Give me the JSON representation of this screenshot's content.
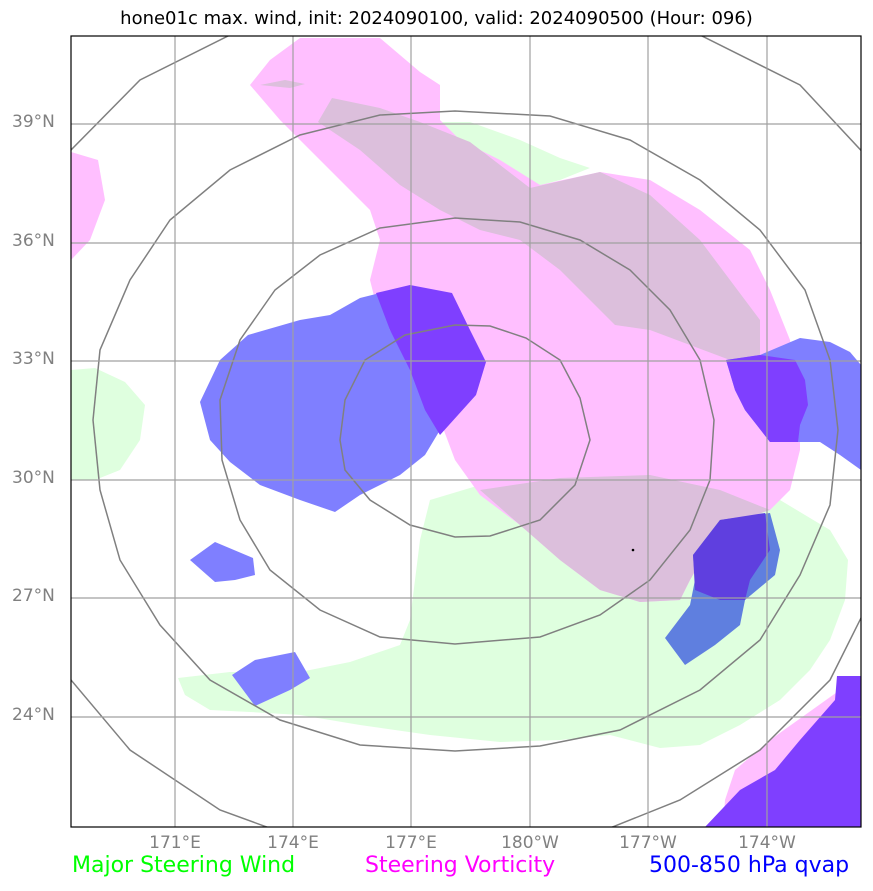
{
  "title": "hone01c max. wind, init: 2024090100, valid: 2024090500 (Hour: 096)",
  "lat_labels": [
    "39°N",
    "36°N",
    "33°N",
    "30°N",
    "27°N",
    "24°N"
  ],
  "lon_labels": [
    "171°E",
    "174°E",
    "177°E",
    "180°W",
    "177°W",
    "174°W"
  ],
  "legend": [
    {
      "label": "Major Steering Wind",
      "color": "#00ff00"
    },
    {
      "label": "Steering Vorticity",
      "color": "#ff00ff"
    },
    {
      "label": "500-850 hPa qvap",
      "color": "#0000ff"
    }
  ],
  "colors": {
    "steering_wind_fill": "#dfffdf",
    "vorticity_fill": "#ffbfff",
    "overlap_fill": "#dcbfdc",
    "qvap_fill": "#7f7fff",
    "qvap_dark_fill": "#7f3fff",
    "qvap_green_fill": "#5f7fdf",
    "grid": "#a0a0a0",
    "range_rings": "#808080"
  }
}
